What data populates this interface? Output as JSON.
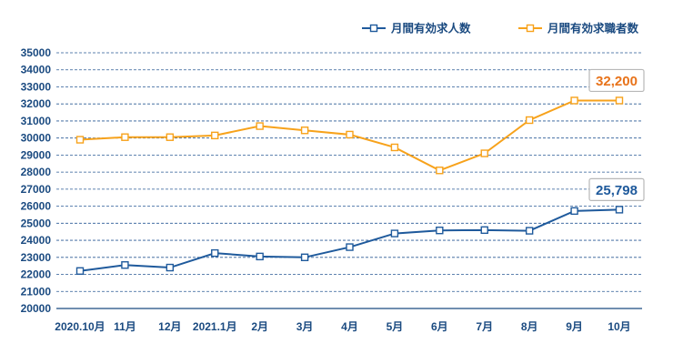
{
  "chart_data": {
    "type": "line",
    "categories": [
      "2020.10月",
      "11月",
      "12月",
      "2021.1月",
      "2月",
      "3月",
      "4月",
      "5月",
      "6月",
      "7月",
      "8月",
      "9月",
      "10月"
    ],
    "ylim": [
      20000,
      35000
    ],
    "yticks": [
      20000,
      21000,
      22000,
      23000,
      24000,
      25000,
      26000,
      27000,
      28000,
      29000,
      30000,
      31000,
      32000,
      33000,
      34000,
      35000
    ],
    "grid": true,
    "legend_position": "top-right",
    "series": [
      {
        "name": "月間有効求人数",
        "color": "#1f5a9c",
        "values": [
          22200,
          22550,
          22400,
          23250,
          23050,
          23000,
          23600,
          24400,
          24580,
          24600,
          24560,
          25720,
          25798
        ],
        "callout": "25,798"
      },
      {
        "name": "月間有効求職者数",
        "color": "#f7a21b",
        "values": [
          29900,
          30050,
          30050,
          30150,
          30700,
          30450,
          30200,
          29450,
          28100,
          29100,
          31050,
          32200,
          32200
        ],
        "callout": "32,200"
      }
    ]
  }
}
